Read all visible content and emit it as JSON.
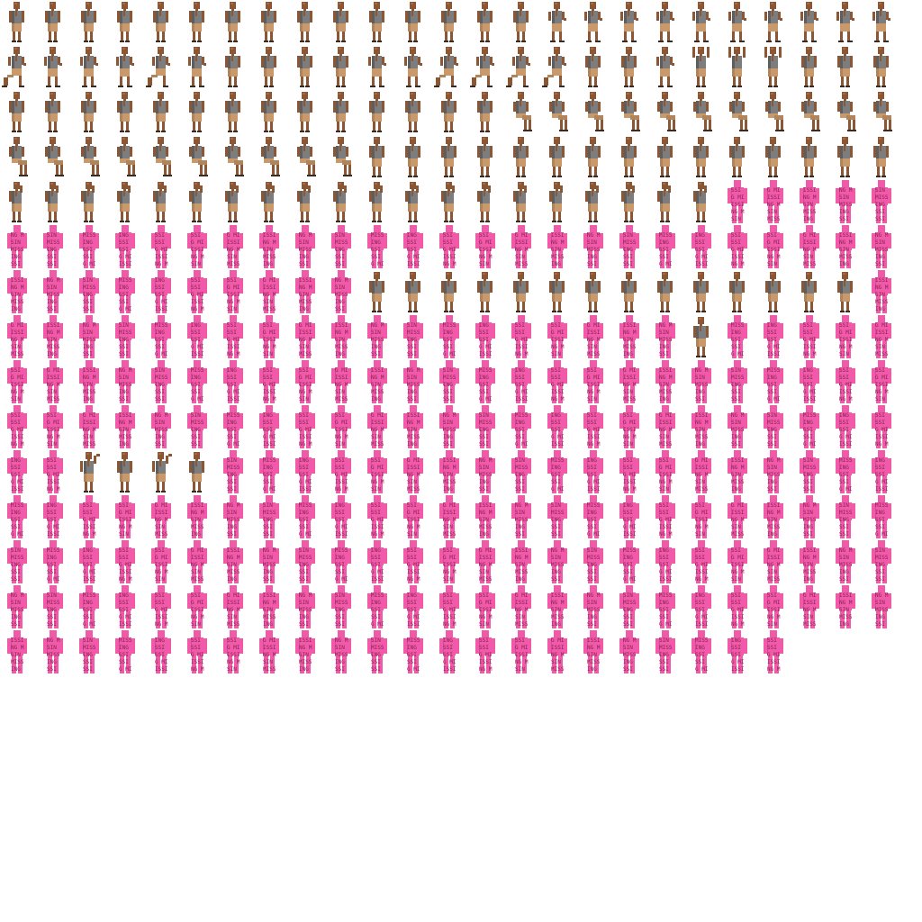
{
  "sheet": {
    "title": "",
    "columns": 25,
    "rows": 15,
    "background": "#ffffff"
  },
  "colors": {
    "skin": "#8a5634",
    "skin_light": "#a8693f",
    "vest": "#7d7d7d",
    "vest_dark": "#5e5e5e",
    "shorts": "#c9996b",
    "shorts_dark": "#b0855c",
    "shoes": "#3a2a20",
    "missing_fill": "#f05aa8",
    "missing_edge": "#d94a95",
    "missing_text": "#8a1f56"
  },
  "missing_texture_text": [
    "SSI",
    "G MI",
    "ISSI",
    "NG M",
    "SIN",
    "MISS",
    "ING",
    "SSI"
  ],
  "frames": {
    "character_ranges": [
      {
        "row": 0,
        "from": 0,
        "to": 24,
        "poses": [
          "stand",
          "stand",
          "stand",
          "stand",
          "stand",
          "stand",
          "stand",
          "stand",
          "stand",
          "stand",
          "stand",
          "stand",
          "stand",
          "stand",
          "stand",
          "walk",
          "walk",
          "walk",
          "walk",
          "walk",
          "walk",
          "walk",
          "walk",
          "walk",
          "walk"
        ]
      },
      {
        "row": 1,
        "from": 0,
        "to": 24,
        "poses": [
          "run",
          "walk",
          "walk",
          "walk",
          "run",
          "walk",
          "stand",
          "stand",
          "stand",
          "stand",
          "walk",
          "walk",
          "run",
          "run",
          "run",
          "run",
          "stand",
          "stand",
          "walk",
          "cheer",
          "cheer",
          "cheer",
          "stand",
          "stand",
          "stand"
        ]
      },
      {
        "row": 2,
        "from": 0,
        "to": 24,
        "poses": [
          "stand",
          "stand",
          "stand",
          "stand",
          "stand",
          "stand",
          "stand",
          "stand",
          "stand",
          "stand",
          "stand",
          "stand",
          "stand",
          "stand",
          "sit",
          "sit",
          "sit",
          "sit",
          "sit",
          "sit",
          "sit",
          "sit",
          "sit",
          "sit",
          "sit"
        ]
      },
      {
        "row": 3,
        "from": 0,
        "to": 24,
        "poses": [
          "sit",
          "sit",
          "sit",
          "sit",
          "sit",
          "sit",
          "sit",
          "sit",
          "sit",
          "sit",
          "stand",
          "stand",
          "stand",
          "stand",
          "stand",
          "stand",
          "stand",
          "stand",
          "stand",
          "stand",
          "stand",
          "stand",
          "stand",
          "stand",
          "stand"
        ]
      },
      {
        "row": 4,
        "from": 0,
        "to": 19,
        "poses": [
          "phone",
          "phone",
          "phone",
          "phone",
          "phone",
          "phone",
          "phone",
          "phone",
          "phone",
          "phone",
          "phone",
          "phone",
          "phone",
          "phone",
          "phone",
          "phone",
          "phone",
          "phone",
          "phone",
          "phone"
        ]
      },
      {
        "row": 6,
        "from": 10,
        "to": 23,
        "poses": [
          "stand",
          "stand",
          "stand",
          "stand",
          "stand",
          "stand",
          "stand",
          "stand",
          "stand",
          "stand",
          "stand",
          "stand",
          "stand",
          "stand"
        ]
      },
      {
        "row": 7,
        "from": 19,
        "to": 19,
        "poses": [
          "stand"
        ]
      },
      {
        "row": 10,
        "from": 2,
        "to": 2,
        "poses": [
          "wave"
        ]
      },
      {
        "row": 10,
        "from": 3,
        "to": 3,
        "poses": [
          "stand"
        ]
      },
      {
        "row": 10,
        "from": 4,
        "to": 4,
        "poses": [
          "wave"
        ]
      },
      {
        "row": 10,
        "from": 5,
        "to": 5,
        "poses": [
          "stand"
        ]
      }
    ],
    "missing_ranges": [
      {
        "row": 4,
        "from": 20,
        "to": 24
      },
      {
        "row": 5,
        "from": 0,
        "to": 24
      },
      {
        "row": 6,
        "from": 0,
        "to": 9
      },
      {
        "row": 6,
        "from": 24,
        "to": 24
      },
      {
        "row": 7,
        "from": 0,
        "to": 18
      },
      {
        "row": 7,
        "from": 20,
        "to": 24
      },
      {
        "row": 8,
        "from": 0,
        "to": 24
      },
      {
        "row": 9,
        "from": 0,
        "to": 24
      },
      {
        "row": 10,
        "from": 0,
        "to": 1
      },
      {
        "row": 10,
        "from": 6,
        "to": 24
      },
      {
        "row": 11,
        "from": 0,
        "to": 24
      },
      {
        "row": 12,
        "from": 0,
        "to": 24
      },
      {
        "row": 13,
        "from": 0,
        "to": 24
      },
      {
        "row": 14,
        "from": 0,
        "to": 21
      }
    ]
  }
}
